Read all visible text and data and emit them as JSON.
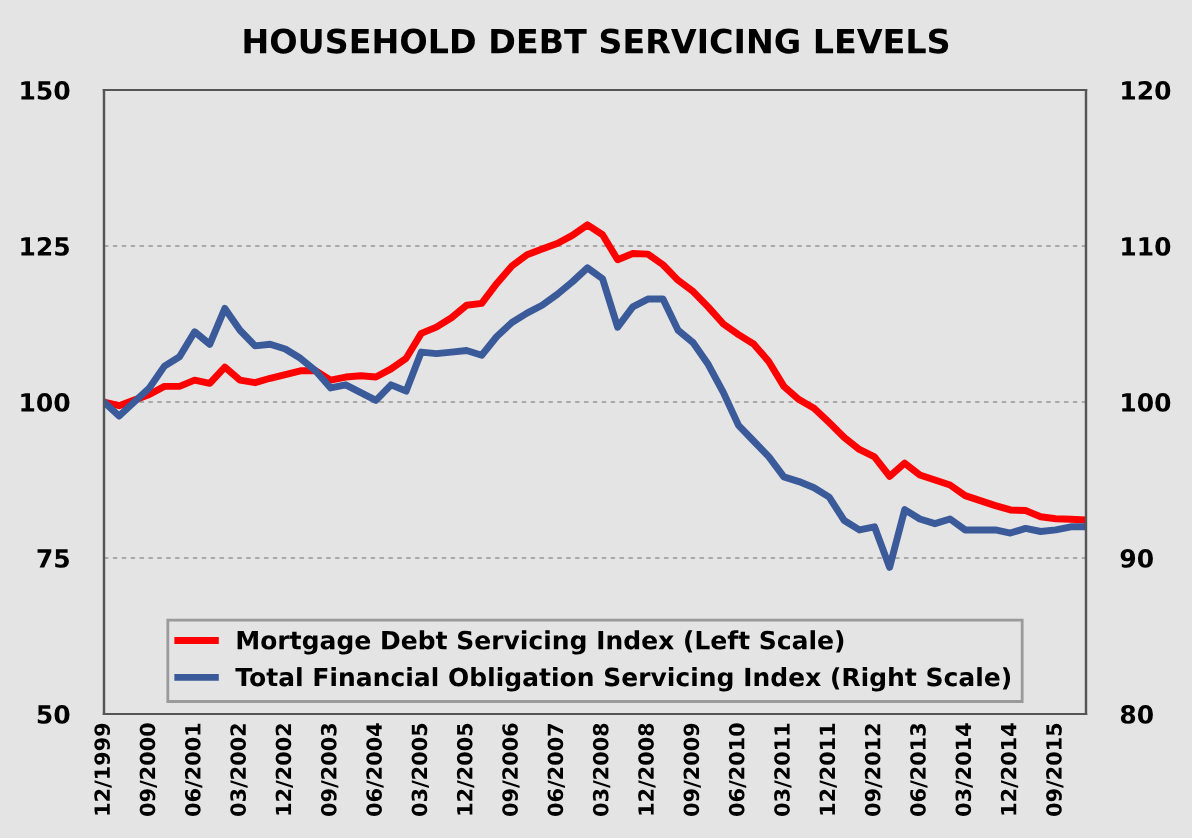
{
  "chart_data": {
    "type": "line",
    "title": "HOUSEHOLD DEBT SERVICING LEVELS",
    "categories": [
      "12/1999",
      null,
      null,
      "09/2000",
      null,
      null,
      "06/2001",
      null,
      null,
      "03/2002",
      null,
      null,
      "12/2002",
      null,
      null,
      "09/2003",
      null,
      null,
      "06/2004",
      null,
      null,
      "03/2005",
      null,
      null,
      "12/2005",
      null,
      null,
      "09/2006",
      null,
      null,
      "06/2007",
      null,
      null,
      "03/2008",
      null,
      null,
      "12/2008",
      null,
      null,
      "09/2009",
      null,
      null,
      "06/2010",
      null,
      null,
      "03/2011",
      null,
      null,
      "12/2011",
      null,
      null,
      "09/2012",
      null,
      null,
      "06/2013",
      null,
      null,
      "03/2014",
      null,
      null,
      "12/2014",
      null,
      null,
      "09/2015",
      null,
      null
    ],
    "series": [
      {
        "name": "Mortgage Debt Servicing Index (Left Scale)",
        "color": "#ff0000",
        "values": [
          100,
          99.4,
          100.3,
          101.2,
          102.5,
          102.5,
          103.5,
          103,
          105.6,
          103.5,
          103.1,
          103.8,
          104.4,
          105,
          105,
          103.5,
          104,
          104.2,
          104,
          105.3,
          107,
          111,
          112,
          113.5,
          115.5,
          115.8,
          119,
          121.8,
          123.6,
          124.5,
          125.4,
          126.7,
          128.4,
          126.8,
          122.8,
          123.8,
          123.7,
          122,
          119.5,
          117.7,
          115.2,
          112.5,
          110.8,
          109.3,
          106.5,
          102.5,
          100.4,
          99,
          96.7,
          94.3,
          92.4,
          91.2,
          88.1,
          90.2,
          88.3,
          87.5,
          86.7,
          85,
          84.2,
          83.4,
          82.7,
          82.6,
          81.6,
          81.3,
          81.2,
          81.1
        ]
      },
      {
        "name": "Total Financial Obligation Servicing Index (Right Scale)",
        "color": "#3a5a9a",
        "axis": "y2",
        "values": [
          100,
          99.1,
          100,
          100.9,
          102.3,
          102.9,
          104.5,
          103.7,
          106,
          104.6,
          103.6,
          103.7,
          103.4,
          102.8,
          102,
          100.9,
          101.1,
          100.6,
          100.1,
          101.1,
          100.7,
          103.2,
          103.1,
          103.2,
          103.3,
          103,
          104.2,
          105.1,
          105.7,
          106.2,
          106.9,
          107.7,
          108.6,
          107.9,
          104.8,
          106.1,
          106.6,
          106.6,
          104.6,
          103.8,
          102.4,
          100.6,
          98.5,
          97.5,
          96.5,
          95.2,
          94.9,
          94.5,
          93.9,
          92.4,
          91.8,
          92,
          89.4,
          93.1,
          92.5,
          92.2,
          92.5,
          91.8,
          91.8,
          91.8,
          91.6,
          91.9,
          91.7,
          91.8,
          92,
          92
        ]
      }
    ],
    "ylim": [
      50,
      150
    ],
    "yticks": [
      50,
      75,
      100,
      125,
      150
    ],
    "y2lim": [
      80,
      120
    ],
    "y2ticks": [
      80,
      90,
      100,
      110,
      120
    ],
    "grid": "y",
    "legend": "bottom",
    "marker": "none",
    "line_style": "solid"
  }
}
